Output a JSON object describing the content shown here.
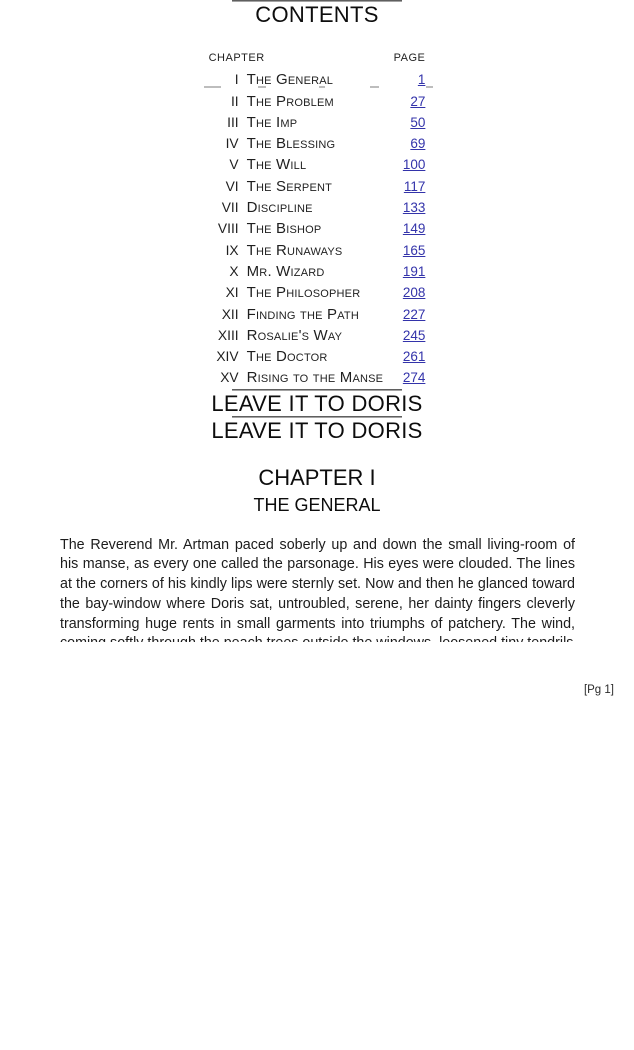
{
  "page": {
    "note": "[Pg 1]"
  },
  "contents": {
    "heading": "CONTENTS",
    "col_chapter": "CHAPTER",
    "col_page": "PAGE",
    "rows": [
      {
        "num": "I",
        "title": "The General",
        "page": "1"
      },
      {
        "num": "II",
        "title": "The Problem",
        "page": "27"
      },
      {
        "num": "III",
        "title": "The Imp",
        "page": "50"
      },
      {
        "num": "IV",
        "title": "The Blessing",
        "page": "69"
      },
      {
        "num": "V",
        "title": "The Will",
        "page": "100"
      },
      {
        "num": "VI",
        "title": "The Serpent",
        "page": "117"
      },
      {
        "num": "VII",
        "title": "Discipline",
        "page": "133"
      },
      {
        "num": "VIII",
        "title": "The Bishop",
        "page": "149"
      },
      {
        "num": "IX",
        "title": "The Runaways",
        "page": "165"
      },
      {
        "num": "X",
        "title": "Mr. Wizard",
        "page": "191"
      },
      {
        "num": "XI",
        "title": "The Philosopher",
        "page": "208"
      },
      {
        "num": "XII",
        "title": "Finding the Path",
        "page": "227"
      },
      {
        "num": "XIII",
        "title": "Rosalie's Way",
        "page": "245"
      },
      {
        "num": "XIV",
        "title": "The Doctor",
        "page": "261"
      },
      {
        "num": "XV",
        "title": "Rising to the Manse",
        "page": "274"
      }
    ]
  },
  "book": {
    "half_title": "LEAVE IT TO DORIS",
    "title": "LEAVE IT TO DORIS",
    "chapter_heading": "CHAPTER I",
    "chapter_title": "THE GENERAL",
    "paragraph": "The Reverend Mr. Artman paced soberly up and down the small living-room of his manse, as every one called the parsonage. His eyes were clouded. The lines at the corners of his kindly lips were sternly set. Now and then he glanced toward the bay-window where Doris sat, untroubled, serene, her dainty fingers cleverly transforming huge rents in small garments into triumphs of patchery. The wind, coming softly through the peach trees outside the windows, loosened tiny tendrils"
  },
  "colors": {
    "link": "#3333aa",
    "text": "#1c1c1c",
    "rule": "#7a7a7a"
  }
}
